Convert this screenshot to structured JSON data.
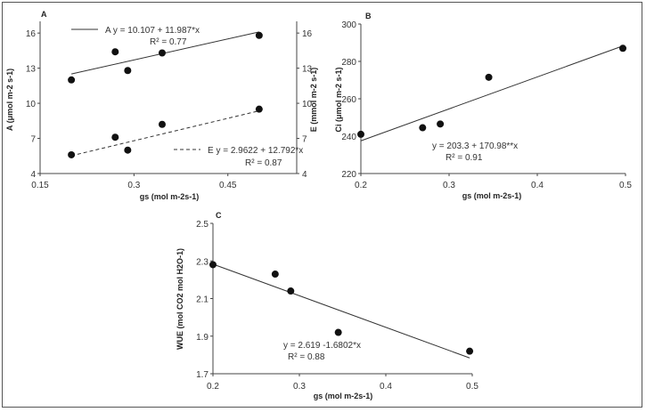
{
  "chart_data": [
    {
      "type": "scatter",
      "panel": "A",
      "xlabel": "gs (mol m-2s-1)",
      "ylabel": "A (μmol m-2 s-1)",
      "y2label": "E (mmol m-2 s-1)",
      "xlim": [
        0.15,
        0.56
      ],
      "ylim": [
        4,
        17
      ],
      "y2lim": [
        4,
        17
      ],
      "xticks": [
        "0.15",
        "0.3",
        "0.45"
      ],
      "yticks": [
        "4",
        "7",
        "10",
        "13",
        "16"
      ],
      "y2ticks": [
        "4",
        "7",
        "10",
        "13",
        "16"
      ],
      "series": [
        {
          "name": "A",
          "line": "solid",
          "x": [
            0.2,
            0.27,
            0.29,
            0.345,
            0.5
          ],
          "y": [
            12.0,
            14.4,
            12.8,
            14.3,
            15.8
          ],
          "fit": {
            "intercept": 10.107,
            "slope": 11.987
          },
          "equation": "A y = 10.107 + 11.987*x",
          "r2": "R² = 0.77"
        },
        {
          "name": "E",
          "line": "dashed",
          "x": [
            0.2,
            0.27,
            0.29,
            0.345,
            0.5
          ],
          "y": [
            5.6,
            7.1,
            6.0,
            8.2,
            9.5
          ],
          "fit": {
            "intercept": 2.9622,
            "slope": 12.792
          },
          "equation": "E y = 2.9622 + 12.792*x",
          "r2": "R² = 0.87"
        }
      ]
    },
    {
      "type": "scatter",
      "panel": "B",
      "xlabel": "gs (mol m-2s-1)",
      "ylabel": "Ci (μmol m-2 s-1)",
      "xlim": [
        0.2,
        0.5
      ],
      "ylim": [
        220,
        300
      ],
      "xticks": [
        "0.2",
        "0.3",
        "0.4",
        "0.5"
      ],
      "yticks": [
        "220",
        "240",
        "260",
        "280",
        "300"
      ],
      "series": [
        {
          "name": "Ci",
          "line": "solid",
          "x": [
            0.2,
            0.27,
            0.29,
            0.345,
            0.497
          ],
          "y": [
            241,
            244.5,
            246.5,
            271.5,
            287
          ],
          "fit": {
            "intercept": 203.3,
            "slope": 170.98
          },
          "equation": "y = 203.3 + 170.98**x",
          "r2": "R² = 0.91"
        }
      ]
    },
    {
      "type": "scatter",
      "panel": "C",
      "xlabel": "gs (mol m-2s-1)",
      "ylabel": "WUE (mol CO2 mol H2O-1)",
      "xlim": [
        0.2,
        0.5
      ],
      "ylim": [
        1.7,
        2.5
      ],
      "xticks": [
        "0.2",
        "0.3",
        "0.4",
        "0.5"
      ],
      "yticks": [
        "1.7",
        "1.9",
        "2.1",
        "2.3",
        "2.5"
      ],
      "series": [
        {
          "name": "WUE",
          "line": "solid",
          "x": [
            0.2,
            0.272,
            0.29,
            0.345,
            0.497
          ],
          "y": [
            2.28,
            2.23,
            2.14,
            1.92,
            1.82
          ],
          "fit": {
            "intercept": 2.619,
            "slope": -1.6802
          },
          "equation": "y = 2.619 -1.6802*x",
          "r2": "R² = 0.88"
        }
      ]
    }
  ]
}
